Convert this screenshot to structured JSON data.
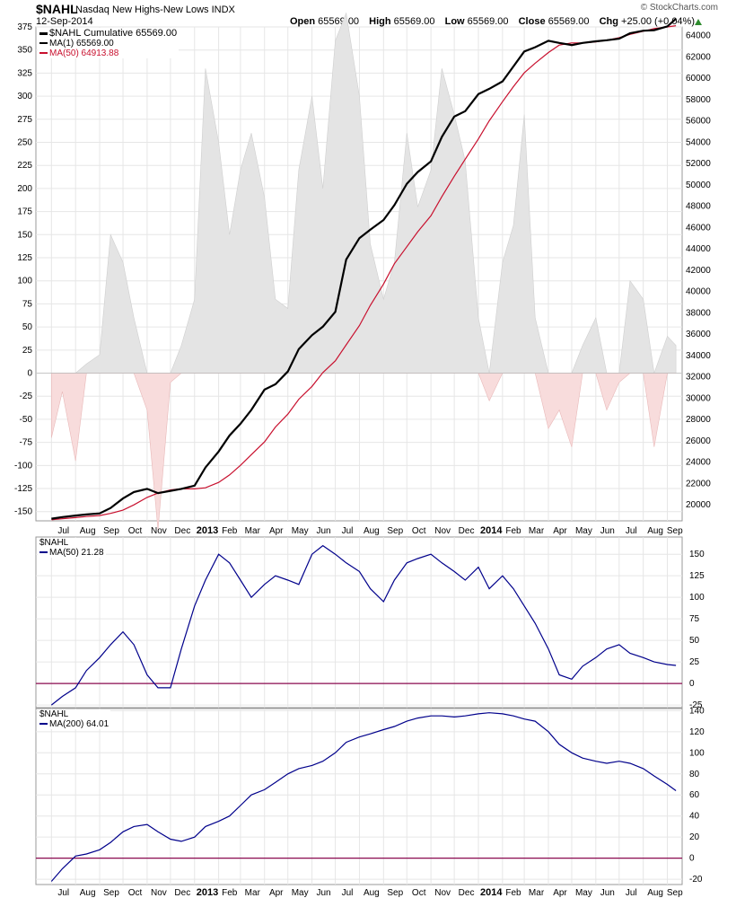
{
  "header": {
    "symbol": "$NAHL",
    "description": "Nasdaq New Highs-New Lows INDX",
    "date": "12-Sep-2014",
    "copyright": "© StockCharts.com",
    "open_label": "Open",
    "open": "65569.00",
    "high_label": "High",
    "high": "65569.00",
    "low_label": "Low",
    "low": "65569.00",
    "close_label": "Close",
    "close": "65569.00",
    "chg_label": "Chg",
    "chg": "+25.00 (+0.04%)"
  },
  "colors": {
    "cumulative": "#000000",
    "ma_red": "#c8102e",
    "ma_blue": "#00008b",
    "zero_line": "#8b0a50",
    "positive_fill": "#e4e4e4",
    "negative_fill": "#f8dcdc",
    "chg_up": "#2e8b2e"
  },
  "chart_data": [
    {
      "type": "area",
      "panel": "main",
      "legend": [
        {
          "label": "$NAHL Cumulative 65569.00",
          "color": "#000000"
        },
        {
          "label": "MA(1) 65569.00",
          "color": "#000000"
        },
        {
          "label": "MA(50) 64913.88",
          "color": "#c8102e"
        }
      ],
      "x": [
        "2012-07-01",
        "2012-07-15",
        "2012-08-01",
        "2012-08-15",
        "2012-09-01",
        "2012-09-15",
        "2012-10-01",
        "2012-10-15",
        "2012-11-01",
        "2012-11-15",
        "2012-12-01",
        "2012-12-15",
        "2013-01-01",
        "2013-01-15",
        "2013-02-01",
        "2013-02-15",
        "2013-03-01",
        "2013-03-15",
        "2013-04-01",
        "2013-04-15",
        "2013-05-01",
        "2013-05-15",
        "2013-06-01",
        "2013-06-15",
        "2013-07-01",
        "2013-07-15",
        "2013-08-01",
        "2013-08-15",
        "2013-09-01",
        "2013-09-15",
        "2013-10-01",
        "2013-10-15",
        "2013-11-01",
        "2013-11-15",
        "2013-12-01",
        "2013-12-15",
        "2014-01-01",
        "2014-01-15",
        "2014-02-01",
        "2014-02-15",
        "2014-03-01",
        "2014-03-15",
        "2014-04-01",
        "2014-04-15",
        "2014-05-01",
        "2014-05-15",
        "2014-06-01",
        "2014-06-15",
        "2014-07-01",
        "2014-07-15",
        "2014-08-01",
        "2014-08-15",
        "2014-09-01",
        "2014-09-12"
      ],
      "series": [
        {
          "name": "$NAHL",
          "values": [
            -70,
            -20,
            -95,
            10,
            20,
            150,
            120,
            60,
            -40,
            -170,
            -10,
            30,
            80,
            330,
            250,
            150,
            220,
            260,
            190,
            80,
            70,
            220,
            300,
            200,
            360,
            390,
            300,
            140,
            80,
            120,
            260,
            180,
            220,
            330,
            280,
            230,
            60,
            -30,
            120,
            160,
            280,
            60,
            -60,
            -40,
            -80,
            30,
            60,
            -40,
            -10,
            100,
            80,
            -80,
            40,
            30
          ]
        },
        {
          "name": "Cumulative",
          "values": [
            18700,
            18850,
            19000,
            19100,
            19200,
            19700,
            20600,
            21200,
            21500,
            21100,
            21300,
            21500,
            21800,
            23500,
            25000,
            26500,
            27600,
            28900,
            30800,
            31300,
            32500,
            34600,
            35900,
            36700,
            38100,
            43000,
            45000,
            45800,
            46700,
            48100,
            50100,
            51200,
            52200,
            54500,
            56400,
            56900,
            58500,
            59000,
            59700,
            61100,
            62500,
            62900,
            63500,
            63300,
            63100,
            63300,
            63450,
            63550,
            63700,
            64200,
            64450,
            64500,
            64850,
            65569
          ]
        },
        {
          "name": "MA(50)",
          "values": [
            18600,
            18700,
            18800,
            18900,
            19000,
            19200,
            19500,
            20000,
            20700,
            21100,
            21400,
            21500,
            21500,
            21600,
            22100,
            22800,
            23700,
            24700,
            25900,
            27300,
            28500,
            29900,
            31100,
            32400,
            33500,
            35000,
            36800,
            38700,
            40700,
            42600,
            44200,
            45600,
            47100,
            48900,
            50800,
            52400,
            54300,
            56000,
            57800,
            59200,
            60500,
            61400,
            62400,
            63100,
            63300,
            63300,
            63400,
            63550,
            63800,
            64100,
            64400,
            64650,
            64800,
            64914
          ]
        }
      ],
      "ylim_left": [
        -160,
        375
      ],
      "ylim_right": [
        18500,
        64800
      ],
      "yticks_left": [
        "375",
        "350",
        "325",
        "300",
        "275",
        "250",
        "225",
        "200",
        "175",
        "150",
        "125",
        "100",
        "75",
        "50",
        "25",
        "0",
        "-25",
        "-50",
        "-75",
        "-100",
        "-125",
        "-150"
      ],
      "yticks_right": [
        "64000",
        "62000",
        "60000",
        "58000",
        "56000",
        "54000",
        "52000",
        "50000",
        "48000",
        "46000",
        "44000",
        "42000",
        "40000",
        "38000",
        "36000",
        "34000",
        "32000",
        "30000",
        "28000",
        "26000",
        "24000",
        "22000",
        "20000"
      ],
      "grid": true
    },
    {
      "type": "line",
      "panel": "ma50",
      "legend_title": "$NAHL",
      "series": [
        {
          "name": "MA(50) 21.28",
          "values": [
            -25,
            -15,
            -5,
            15,
            30,
            45,
            60,
            45,
            10,
            -5,
            -5,
            40,
            90,
            120,
            150,
            140,
            120,
            100,
            115,
            125,
            120,
            115,
            150,
            160,
            150,
            140,
            130,
            110,
            95,
            120,
            140,
            145,
            150,
            140,
            130,
            120,
            135,
            110,
            125,
            110,
            90,
            70,
            40,
            10,
            5,
            20,
            30,
            40,
            45,
            35,
            30,
            25,
            22,
            21
          ]
        }
      ],
      "ylim": [
        -28,
        170
      ],
      "yticks": [
        "150",
        "125",
        "100",
        "75",
        "50",
        "25",
        "0",
        "-25"
      ],
      "grid": true
    },
    {
      "type": "line",
      "panel": "ma200",
      "legend_title": "$NAHL",
      "series": [
        {
          "name": "MA(200) 64.01",
          "values": [
            -22,
            -10,
            2,
            4,
            8,
            15,
            25,
            30,
            32,
            25,
            18,
            16,
            20,
            30,
            35,
            40,
            50,
            60,
            65,
            72,
            80,
            85,
            88,
            92,
            100,
            110,
            115,
            118,
            122,
            125,
            130,
            133,
            135,
            135,
            134,
            135,
            137,
            138,
            137,
            135,
            132,
            130,
            120,
            108,
            100,
            95,
            92,
            90,
            92,
            90,
            85,
            78,
            70,
            64
          ]
        }
      ],
      "ylim": [
        -25,
        142
      ],
      "yticks": [
        "140",
        "120",
        "100",
        "80",
        "60",
        "40",
        "20",
        "0",
        "-20"
      ],
      "grid": true
    }
  ],
  "x_axis": {
    "labels": [
      "Jul",
      "Aug",
      "Sep",
      "Oct",
      "Nov",
      "Dec",
      "2013",
      "Feb",
      "Mar",
      "Apr",
      "May",
      "Jun",
      "Jul",
      "Aug",
      "Sep",
      "Oct",
      "Nov",
      "Dec",
      "2014",
      "Feb",
      "Mar",
      "Apr",
      "May",
      "Jun",
      "Jul",
      "Aug",
      "Sep"
    ],
    "bold": [
      "2013",
      "2014"
    ]
  }
}
